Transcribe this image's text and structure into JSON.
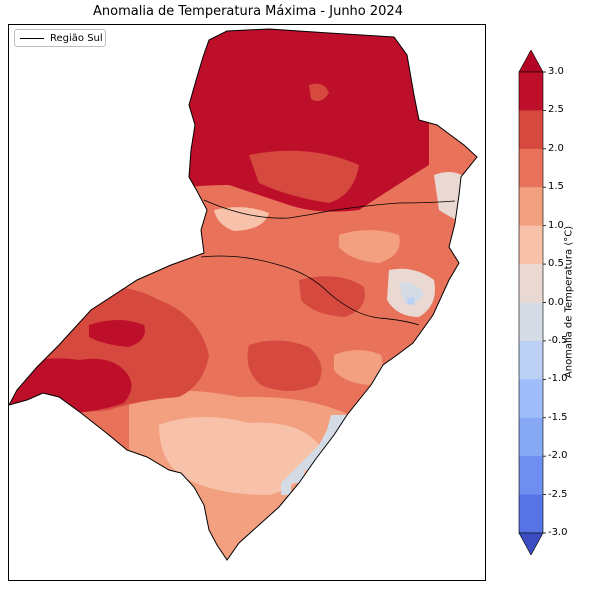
{
  "title": "Anomalia de Temperatura Máxima - Junho 2024",
  "legend": {
    "label": "Região Sul"
  },
  "colorbar": {
    "label": "Anomalia de Temperatura (°C)",
    "min": -3.0,
    "max": 3.0,
    "ticks": [
      "3.0",
      "2.5",
      "2.0",
      "1.5",
      "1.0",
      "0.5",
      "0.0",
      "-0.5",
      "-1.0",
      "-1.5",
      "-2.0",
      "-2.5",
      "-3.0"
    ],
    "colors_top_to_bottom": [
      "#bd0f2a",
      "#d6493f",
      "#e8735a",
      "#f3a080",
      "#f7c2a9",
      "#ead8d3",
      "#d5dbe4",
      "#bcd0f4",
      "#9fbdf9",
      "#86a8f5",
      "#6e8ef0",
      "#5773e4"
    ],
    "over_color": "#b40426",
    "under_color": "#3b4cc0"
  }
}
